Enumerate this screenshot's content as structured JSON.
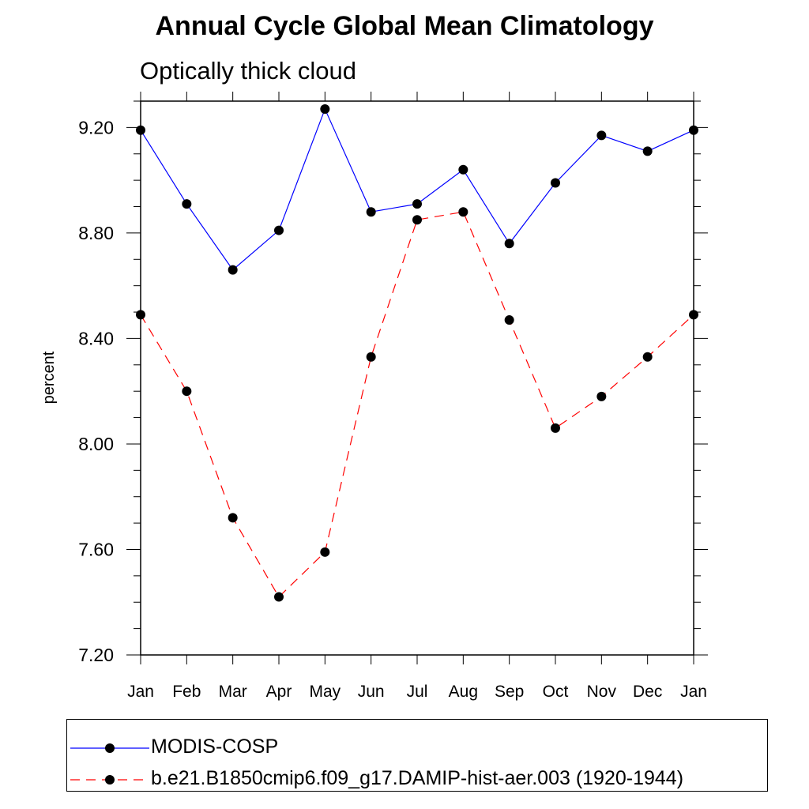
{
  "title": "Annual Cycle Global Mean Climatology",
  "subtitle": "Optically thick cloud",
  "chart_data": {
    "type": "line",
    "title": "Annual Cycle Global Mean Climatology",
    "subtitle": "Optically thick cloud",
    "xlabel": "",
    "ylabel": "percent",
    "categories": [
      "Jan",
      "Feb",
      "Mar",
      "Apr",
      "May",
      "Jun",
      "Jul",
      "Aug",
      "Sep",
      "Oct",
      "Nov",
      "Dec",
      "Jan"
    ],
    "ylim": [
      7.2,
      9.3
    ],
    "yticks": [
      7.2,
      7.6,
      8.0,
      8.4,
      8.8,
      9.2
    ],
    "ytick_labels": [
      "7.20",
      "7.60",
      "8.00",
      "8.40",
      "8.80",
      "9.20"
    ],
    "grid": false,
    "legend_position": "bottom",
    "series": [
      {
        "name": "MODIS-COSP",
        "color": "#0000ff",
        "line_style": "solid",
        "marker": "filled-circle",
        "values": [
          9.19,
          8.91,
          8.66,
          8.81,
          9.27,
          8.88,
          8.91,
          9.04,
          8.76,
          8.99,
          9.17,
          9.11,
          9.19
        ]
      },
      {
        "name": "b.e21.B1850cmip6.f09_g17.DAMIP-hist-aer.003 (1920-1944)",
        "color": "#ff0000",
        "line_style": "dashed",
        "marker": "filled-circle",
        "values": [
          8.49,
          8.2,
          7.72,
          7.42,
          7.59,
          8.33,
          8.85,
          8.88,
          8.47,
          8.06,
          8.18,
          8.33,
          8.49
        ]
      }
    ]
  }
}
